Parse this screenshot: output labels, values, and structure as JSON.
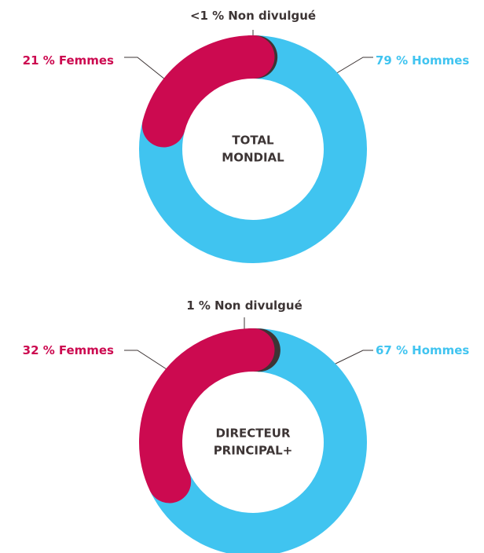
{
  "chart_data": [
    {
      "type": "donut",
      "center_label": [
        "TOTAL",
        "MONDIAL"
      ],
      "series": [
        {
          "name": "Non divulgué",
          "color": "#3d3535",
          "values": [
            0.5
          ],
          "value_labels": [
            "<1 %"
          ]
        },
        {
          "name": "Femmes",
          "color": "#cc0a50",
          "values": [
            21
          ],
          "value_labels": [
            "21 %"
          ]
        },
        {
          "name": "Hommes",
          "color": "#40c4f0",
          "values": [
            79
          ],
          "value_labels": [
            "79 %"
          ]
        }
      ]
    },
    {
      "type": "donut",
      "center_label": [
        "DIRECTEUR",
        "PRINCIPAL+"
      ],
      "series": [
        {
          "name": "Non divulgué",
          "color": "#3d3535",
          "values": [
            1
          ],
          "value_labels": [
            "1 %"
          ]
        },
        {
          "name": "Femmes",
          "color": "#cc0a50",
          "values": [
            32
          ],
          "value_labels": [
            "32 %"
          ]
        },
        {
          "name": "Hommes",
          "color": "#40c4f0",
          "values": [
            67
          ],
          "value_labels": [
            "67 %"
          ]
        }
      ]
    }
  ]
}
